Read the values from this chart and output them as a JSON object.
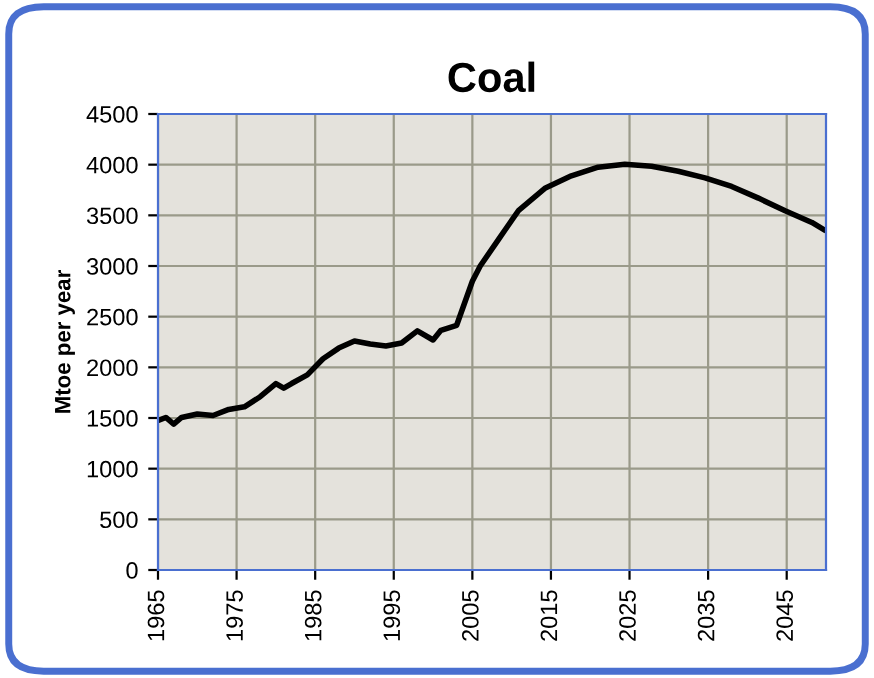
{
  "chart_data": {
    "type": "line",
    "title": "Coal",
    "ylabel": "Mtoe per year",
    "x": [
      1965,
      1966,
      1967,
      1968,
      1970,
      1972,
      1974,
      1976,
      1978,
      1980,
      1981,
      1982,
      1984,
      1986,
      1988,
      1990,
      1992,
      1994,
      1996,
      1998,
      2000,
      2001,
      2003,
      2005,
      2006,
      2008.4,
      2009.2,
      2010.9,
      2014.3,
      2017.6,
      2021,
      2024.4,
      2027.8,
      2031.2,
      2034.6,
      2038,
      2041.4,
      2044.8,
      2048.2,
      2049.7
    ],
    "series": [
      {
        "color": "#000000",
        "values": [
          1475,
          1505,
          1440,
          1505,
          1540,
          1525,
          1585,
          1610,
          1710,
          1840,
          1795,
          1840,
          1925,
          2085,
          2190,
          2260,
          2230,
          2210,
          2240,
          2360,
          2270,
          2365,
          2415,
          2850,
          3000,
          3270,
          3360,
          3550,
          3770,
          3890,
          3975,
          4005,
          3985,
          3935,
          3870,
          3785,
          3670,
          3545,
          3430,
          3360
        ]
      }
    ],
    "xlim": [
      1965,
      2050
    ],
    "xticks": [
      1965,
      1975,
      1985,
      1995,
      2005,
      2015,
      2025,
      2035,
      2045
    ],
    "ylim": [
      0,
      4500
    ],
    "yticks": [
      0,
      500,
      1000,
      1500,
      2000,
      2500,
      3000,
      3500,
      4000,
      4500
    ],
    "grid": true,
    "marker": "none",
    "line_style": "solid"
  }
}
